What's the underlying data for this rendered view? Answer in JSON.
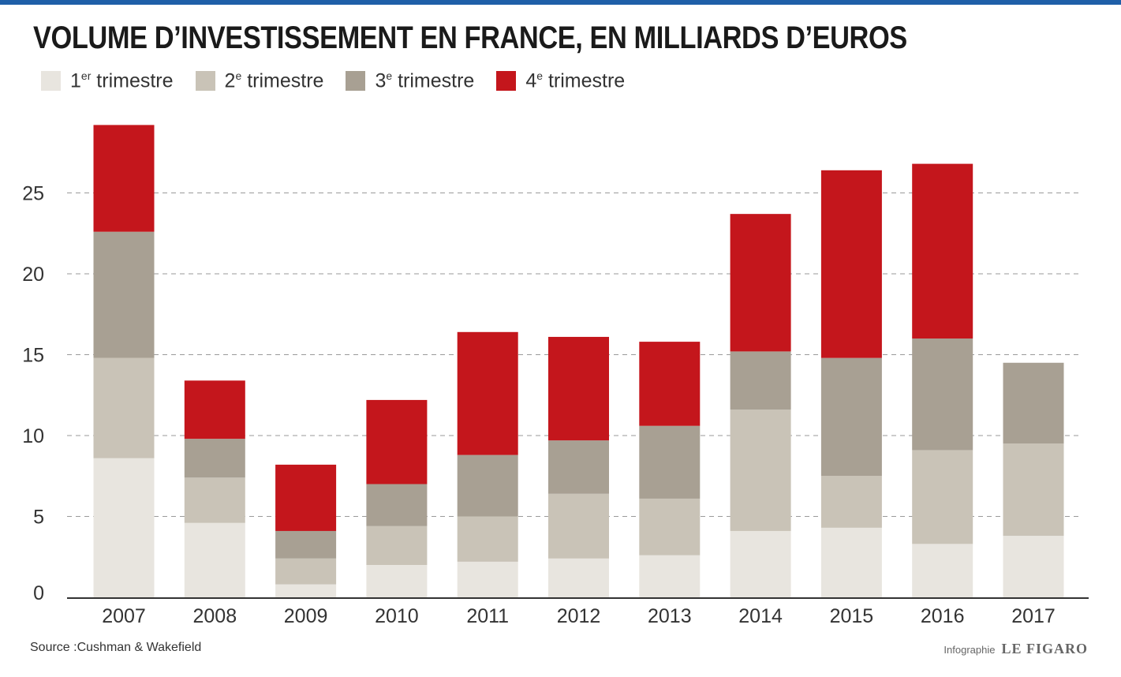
{
  "header": {
    "title": "VOLUME D’INVESTISSEMENT EN FRANCE, EN MILLIARDS D’EUROS"
  },
  "legend": [
    {
      "num": "1",
      "sup": "er",
      "text": " trimestre",
      "color": "#e8e5df"
    },
    {
      "num": "2",
      "sup": "e",
      "text": " trimestre",
      "color": "#c9c3b7"
    },
    {
      "num": "3",
      "sup": "e",
      "text": " trimestre",
      "color": "#a8a093"
    },
    {
      "num": "4",
      "sup": "e",
      "text": " trimestre",
      "color": "#c4161c"
    }
  ],
  "footer": {
    "source": "Source :Cushman & Wakefield",
    "credit_label": "Infographie",
    "credit_logo": "LE FIGARO"
  },
  "chart_data": {
    "type": "bar",
    "stacked": true,
    "title": "VOLUME D’INVESTISSEMENT EN FRANCE, EN MILLIARDS D’EUROS",
    "categories": [
      "2007",
      "2008",
      "2009",
      "2010",
      "2011",
      "2012",
      "2013",
      "2014",
      "2015",
      "2016",
      "2017"
    ],
    "series": [
      {
        "name": "1er trimestre",
        "color": "#e8e5df",
        "values": [
          8.6,
          4.6,
          0.8,
          2.0,
          2.2,
          2.4,
          2.6,
          4.1,
          4.3,
          3.3,
          3.8
        ]
      },
      {
        "name": "2e trimestre",
        "color": "#c9c3b7",
        "values": [
          6.2,
          2.8,
          1.6,
          2.4,
          2.8,
          4.0,
          3.5,
          7.5,
          3.2,
          5.8,
          5.7
        ]
      },
      {
        "name": "3e trimestre",
        "color": "#a8a093",
        "values": [
          7.8,
          2.4,
          1.7,
          2.6,
          3.8,
          3.3,
          4.5,
          3.6,
          7.3,
          6.9,
          5.0
        ]
      },
      {
        "name": "4e trimestre",
        "color": "#c4161c",
        "values": [
          6.6,
          3.6,
          4.1,
          5.2,
          7.6,
          6.4,
          5.2,
          8.5,
          11.6,
          10.8,
          0
        ]
      }
    ],
    "yticks": [
      0,
      5,
      10,
      15,
      20,
      25
    ],
    "ylim": [
      0,
      30
    ],
    "grid": true,
    "legend_position": "top-left"
  }
}
